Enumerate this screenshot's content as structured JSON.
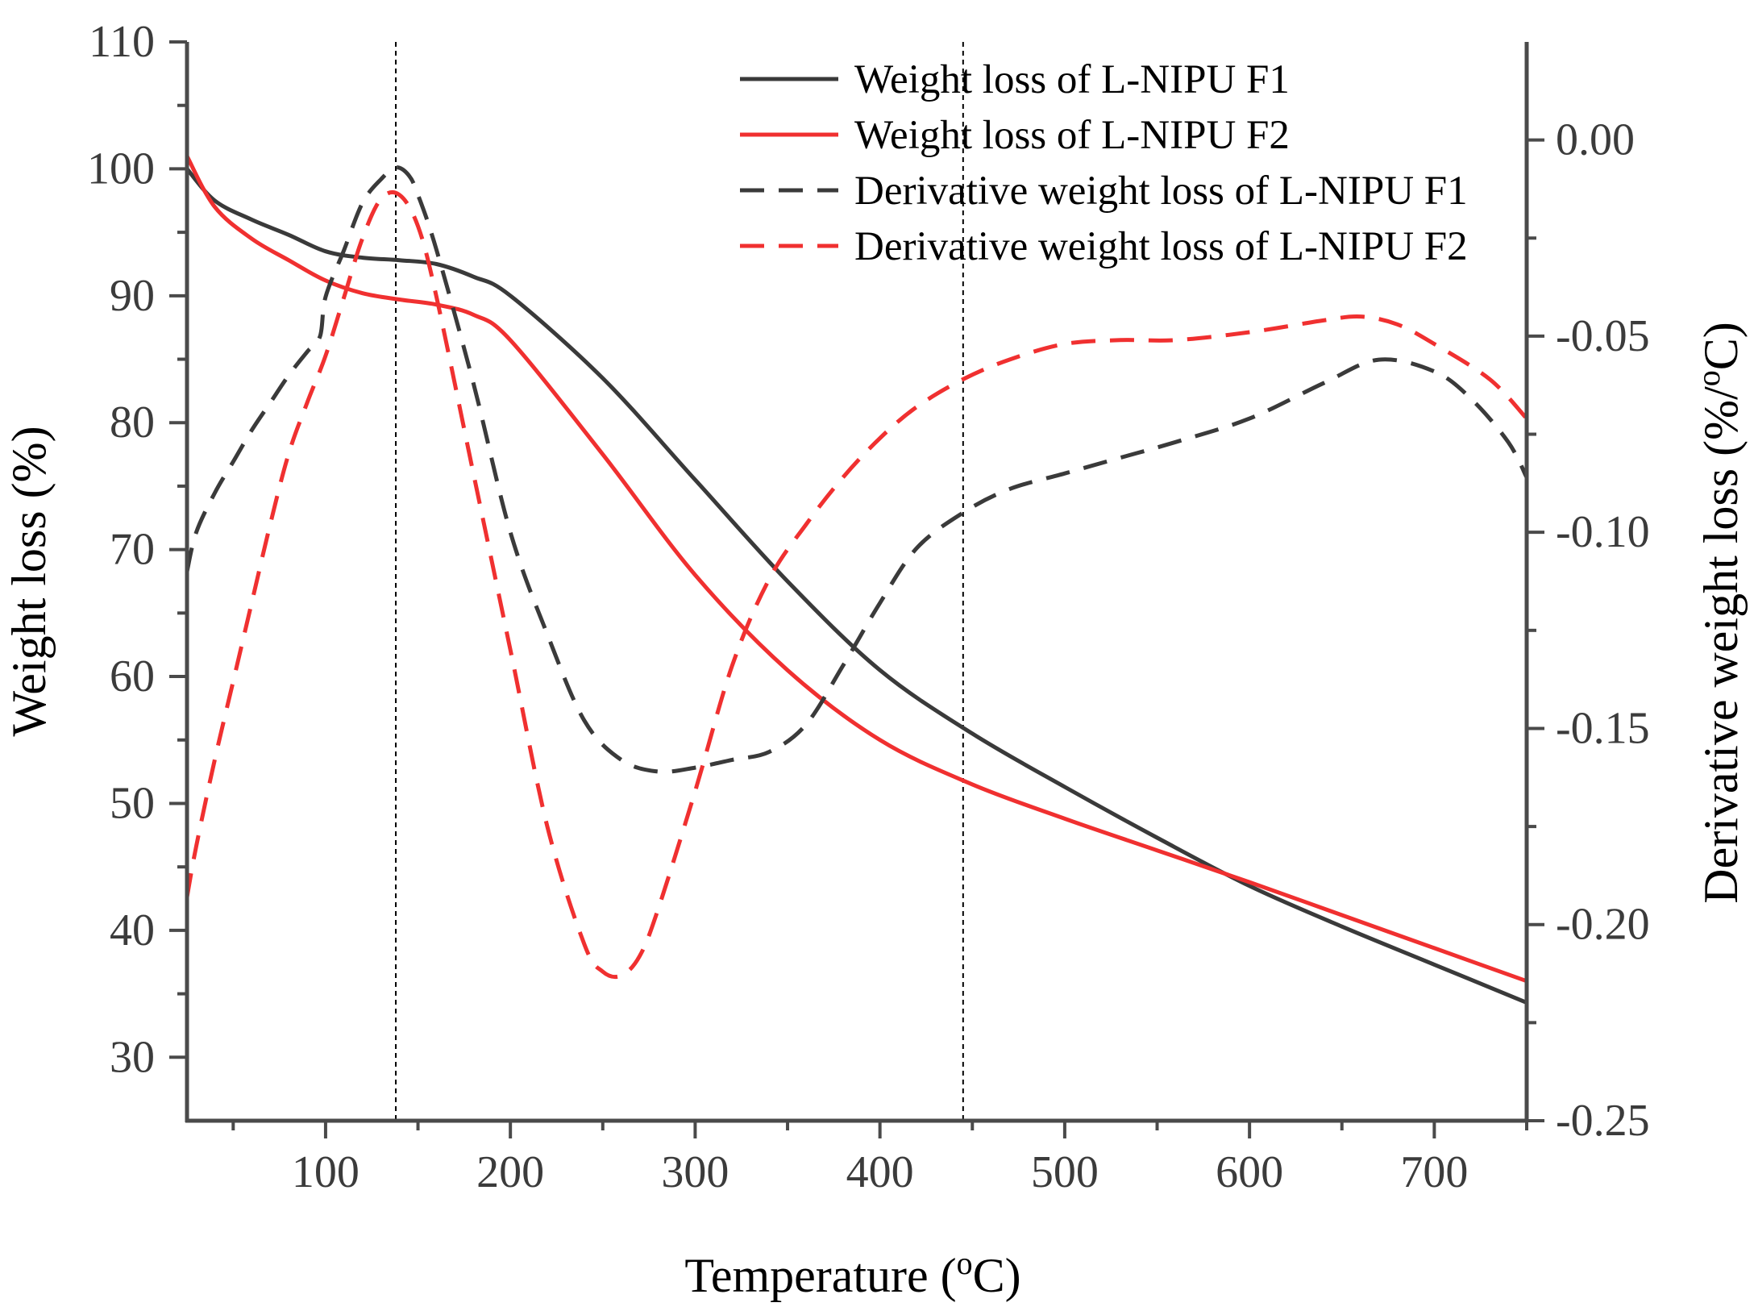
{
  "chart_data": {
    "type": "line",
    "xlabel": "Temperature (",
    "xlabel_sup": "o",
    "xlabel_end": "C)",
    "ylabel_left": "Weight loss (%)",
    "ylabel_right": "Derivative weight loss (%/",
    "ylabel_right_sup": "o",
    "ylabel_right_end": "C)",
    "xlim": [
      25,
      750
    ],
    "ylim_left": [
      25,
      110
    ],
    "ylim_right": [
      -0.25,
      0.025
    ],
    "x_ticks": [
      "100",
      "200",
      "300",
      "400",
      "500",
      "600",
      "700"
    ],
    "y_left_ticks": [
      "30",
      "40",
      "50",
      "60",
      "70",
      "80",
      "90",
      "100",
      "110"
    ],
    "y_right_ticks": [
      "0.00",
      "-0.05",
      "-0.10",
      "-0.15",
      "-0.20",
      "-0.25"
    ],
    "legend_position": "top-right",
    "reference_lines_x": [
      138,
      445
    ],
    "series": [
      {
        "name": "Weight loss of L-NIPU F1",
        "axis": "left",
        "style": "solid",
        "color": "#3a3a3a",
        "x": [
          25,
          40,
          60,
          80,
          100,
          120,
          140,
          160,
          180,
          200,
          250,
          300,
          350,
          400,
          450,
          500,
          550,
          600,
          650,
          700,
          750
        ],
        "y": [
          100,
          97.5,
          96,
          94.8,
          93.5,
          93.0,
          92.8,
          92.5,
          91.5,
          90.0,
          83.5,
          75.5,
          67.5,
          60.5,
          55.5,
          51.3,
          47.3,
          43.5,
          40.3,
          37.3,
          34.3
        ]
      },
      {
        "name": "Weight loss of L-NIPU F2",
        "axis": "left",
        "style": "solid",
        "color": "#f03030",
        "x": [
          25,
          40,
          60,
          80,
          100,
          120,
          140,
          160,
          180,
          200,
          250,
          300,
          350,
          400,
          450,
          500,
          550,
          600,
          650,
          700,
          750
        ],
        "y": [
          101,
          97.0,
          94.5,
          92.8,
          91.2,
          90.2,
          89.7,
          89.3,
          88.5,
          86.5,
          77.5,
          68.0,
          60.5,
          55.0,
          51.5,
          48.8,
          46.3,
          43.8,
          41.2,
          38.6,
          36.0
        ]
      },
      {
        "name": "Derivative weight loss of L-NIPU F1",
        "axis": "right",
        "style": "dashed",
        "color": "#3a3a3a",
        "x": [
          25,
          30,
          40,
          50,
          60,
          70,
          80,
          90,
          97,
          100,
          110,
          120,
          130,
          138,
          145,
          150,
          160,
          180,
          200,
          220,
          240,
          260,
          280,
          300,
          320,
          340,
          360,
          380,
          400,
          420,
          445,
          470,
          500,
          530,
          560,
          600,
          640,
          670,
          700,
          720,
          740,
          750
        ],
        "y": [
          -0.11,
          -0.1,
          -0.09,
          -0.082,
          -0.074,
          -0.067,
          -0.06,
          -0.054,
          -0.05,
          -0.04,
          -0.028,
          -0.016,
          -0.01,
          -0.007,
          -0.009,
          -0.014,
          -0.028,
          -0.062,
          -0.1,
          -0.126,
          -0.148,
          -0.158,
          -0.161,
          -0.16,
          -0.158,
          -0.156,
          -0.149,
          -0.134,
          -0.118,
          -0.104,
          -0.095,
          -0.089,
          -0.085,
          -0.081,
          -0.077,
          -0.071,
          -0.062,
          -0.056,
          -0.059,
          -0.066,
          -0.077,
          -0.086
        ]
      },
      {
        "name": "Derivative weight loss of L-NIPU F2",
        "axis": "right",
        "style": "dashed",
        "color": "#f03030",
        "x": [
          25,
          30,
          40,
          50,
          60,
          70,
          80,
          90,
          100,
          110,
          120,
          130,
          140,
          150,
          160,
          180,
          200,
          220,
          240,
          250,
          260,
          270,
          280,
          300,
          320,
          340,
          360,
          380,
          400,
          420,
          445,
          470,
          500,
          530,
          560,
          600,
          640,
          660,
          680,
          700,
          730,
          750
        ],
        "y": [
          -0.193,
          -0.18,
          -0.158,
          -0.138,
          -0.118,
          -0.098,
          -0.08,
          -0.067,
          -0.055,
          -0.04,
          -0.025,
          -0.015,
          -0.014,
          -0.022,
          -0.04,
          -0.085,
          -0.13,
          -0.175,
          -0.205,
          -0.212,
          -0.213,
          -0.208,
          -0.196,
          -0.166,
          -0.134,
          -0.112,
          -0.098,
          -0.086,
          -0.076,
          -0.068,
          -0.061,
          -0.056,
          -0.052,
          -0.051,
          -0.051,
          -0.049,
          -0.046,
          -0.045,
          -0.047,
          -0.052,
          -0.061,
          -0.071
        ]
      }
    ]
  }
}
